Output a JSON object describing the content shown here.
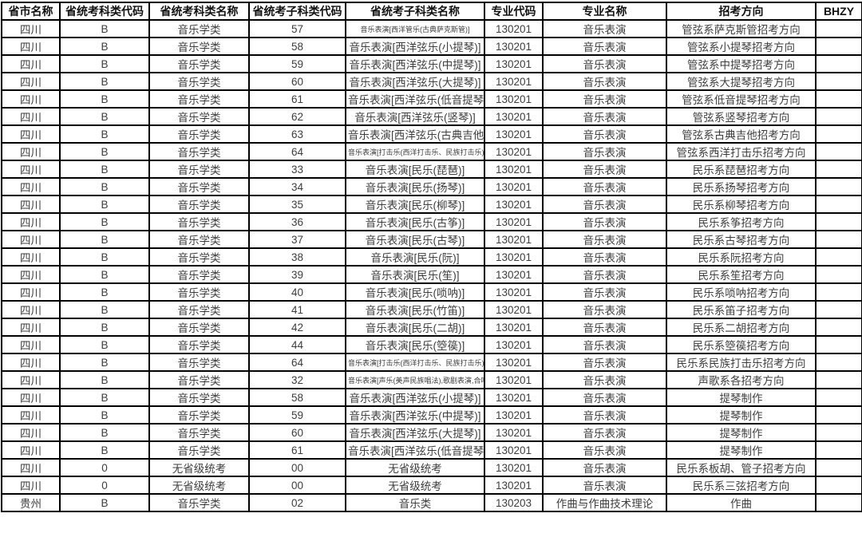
{
  "table": {
    "headers": [
      "省市名称",
      "省统考科类代码",
      "省统考科类名称",
      "省统考子科类代码",
      "省统考子科类名称",
      "专业代码",
      "专业名称",
      "招考方向",
      "BHZY"
    ],
    "rows": [
      [
        "四川",
        "B",
        "音乐学类",
        "57",
        "音乐表演[西洋管乐(古典萨克斯管)]",
        "130201",
        "音乐表演",
        "管弦系萨克斯管招考方向",
        ""
      ],
      [
        "四川",
        "B",
        "音乐学类",
        "58",
        "音乐表演[西洋弦乐(小提琴)]",
        "130201",
        "音乐表演",
        "管弦系小提琴招考方向",
        ""
      ],
      [
        "四川",
        "B",
        "音乐学类",
        "59",
        "音乐表演[西洋弦乐(中提琴)]",
        "130201",
        "音乐表演",
        "管弦系中提琴招考方向",
        ""
      ],
      [
        "四川",
        "B",
        "音乐学类",
        "60",
        "音乐表演[西洋弦乐(大提琴)]",
        "130201",
        "音乐表演",
        "管弦系大提琴招考方向",
        ""
      ],
      [
        "四川",
        "B",
        "音乐学类",
        "61",
        "音乐表演[西洋弦乐(低音提琴)]",
        "130201",
        "音乐表演",
        "管弦系低音提琴招考方向",
        ""
      ],
      [
        "四川",
        "B",
        "音乐学类",
        "62",
        "音乐表演[西洋弦乐(竖琴)]",
        "130201",
        "音乐表演",
        "管弦系竖琴招考方向",
        ""
      ],
      [
        "四川",
        "B",
        "音乐学类",
        "63",
        "音乐表演[西洋弦乐(古典吉他)]",
        "130201",
        "音乐表演",
        "管弦系古典吉他招考方向",
        ""
      ],
      [
        "四川",
        "B",
        "音乐学类",
        "64",
        "音乐表演[打击乐(西洋打击乐、民族打击乐)]",
        "130201",
        "音乐表演",
        "管弦系西洋打击乐招考方向",
        ""
      ],
      [
        "四川",
        "B",
        "音乐学类",
        "33",
        "音乐表演[民乐(琵琶)]",
        "130201",
        "音乐表演",
        "民乐系琵琶招考方向",
        ""
      ],
      [
        "四川",
        "B",
        "音乐学类",
        "34",
        "音乐表演[民乐(扬琴)]",
        "130201",
        "音乐表演",
        "民乐系扬琴招考方向",
        ""
      ],
      [
        "四川",
        "B",
        "音乐学类",
        "35",
        "音乐表演[民乐(柳琴)]",
        "130201",
        "音乐表演",
        "民乐系柳琴招考方向",
        ""
      ],
      [
        "四川",
        "B",
        "音乐学类",
        "36",
        "音乐表演[民乐(古筝)]",
        "130201",
        "音乐表演",
        "民乐系筝招考方向",
        ""
      ],
      [
        "四川",
        "B",
        "音乐学类",
        "37",
        "音乐表演[民乐(古琴)]",
        "130201",
        "音乐表演",
        "民乐系古琴招考方向",
        ""
      ],
      [
        "四川",
        "B",
        "音乐学类",
        "38",
        "音乐表演[民乐(阮)]",
        "130201",
        "音乐表演",
        "民乐系阮招考方向",
        ""
      ],
      [
        "四川",
        "B",
        "音乐学类",
        "39",
        "音乐表演[民乐(笙)]",
        "130201",
        "音乐表演",
        "民乐系笙招考方向",
        ""
      ],
      [
        "四川",
        "B",
        "音乐学类",
        "40",
        "音乐表演[民乐(唢呐)]",
        "130201",
        "音乐表演",
        "民乐系唢呐招考方向",
        ""
      ],
      [
        "四川",
        "B",
        "音乐学类",
        "41",
        "音乐表演[民乐(竹笛)]",
        "130201",
        "音乐表演",
        "民乐系笛子招考方向",
        ""
      ],
      [
        "四川",
        "B",
        "音乐学类",
        "42",
        "音乐表演[民乐(二胡)]",
        "130201",
        "音乐表演",
        "民乐系二胡招考方向",
        ""
      ],
      [
        "四川",
        "B",
        "音乐学类",
        "44",
        "音乐表演[民乐(箜篌)]",
        "130201",
        "音乐表演",
        "民乐系箜篌招考方向",
        ""
      ],
      [
        "四川",
        "B",
        "音乐学类",
        "64",
        "音乐表演[打击乐(西洋打击乐、民族打击乐)]",
        "130201",
        "音乐表演",
        "民乐系民族打击乐招考方向",
        ""
      ],
      [
        "四川",
        "B",
        "音乐学类",
        "32",
        "音乐表演[声乐(美声民族唱法),歌剧表演,合唱,音乐剧]",
        "130201",
        "音乐表演",
        "声歌系各招考方向",
        ""
      ],
      [
        "四川",
        "B",
        "音乐学类",
        "58",
        "音乐表演[西洋弦乐(小提琴)]",
        "130201",
        "音乐表演",
        "提琴制作",
        ""
      ],
      [
        "四川",
        "B",
        "音乐学类",
        "59",
        "音乐表演[西洋弦乐(中提琴)]",
        "130201",
        "音乐表演",
        "提琴制作",
        ""
      ],
      [
        "四川",
        "B",
        "音乐学类",
        "60",
        "音乐表演[西洋弦乐(大提琴)]",
        "130201",
        "音乐表演",
        "提琴制作",
        ""
      ],
      [
        "四川",
        "B",
        "音乐学类",
        "61",
        "音乐表演[西洋弦乐(低音提琴)]",
        "130201",
        "音乐表演",
        "提琴制作",
        ""
      ],
      [
        "四川",
        "0",
        "无省级统考",
        "00",
        "无省级统考",
        "130201",
        "音乐表演",
        "民乐系板胡、管子招考方向",
        ""
      ],
      [
        "四川",
        "0",
        "无省级统考",
        "00",
        "无省级统考",
        "130201",
        "音乐表演",
        "民乐系三弦招考方向",
        ""
      ],
      [
        "贵州",
        "B",
        "音乐学类",
        "02",
        "音乐类",
        "130203",
        "作曲与作曲技术理论",
        "作曲",
        ""
      ]
    ]
  },
  "colors": {
    "border": "#000000",
    "header_text": "#111111",
    "body_text": "#3d3d3d",
    "background": "#ffffff"
  }
}
